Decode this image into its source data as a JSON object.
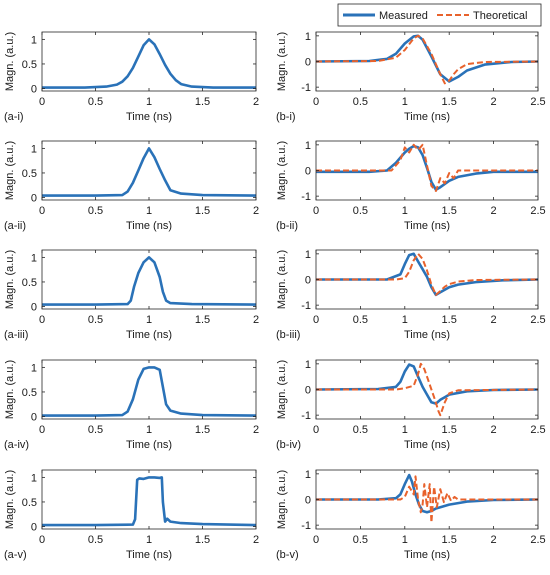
{
  "legend": {
    "measured_label": "Measured",
    "theoretical_label": "Theoretical"
  },
  "colors": {
    "measured": "#2a72b8",
    "theoretical": "#e8622c",
    "axis": "#262626"
  },
  "chart_data": [
    {
      "id": "a-i",
      "type": "line",
      "panel_label": "(a-i)",
      "xlabel": "Time (ns)",
      "ylabel": "Magn. (a.u.)",
      "xlim": [
        0,
        2
      ],
      "ylim": [
        -0.05,
        1.15
      ],
      "xticks": [
        0,
        0.5,
        1,
        1.5,
        2
      ],
      "xtick_labels": [
        "0",
        "0.5",
        "1",
        "1.5",
        "2"
      ],
      "yticks": [
        0,
        0.5,
        1
      ],
      "ytick_labels": [
        "0",
        "0.5",
        "1"
      ],
      "series": [
        {
          "role": "measured",
          "x": [
            0,
            0.4,
            0.6,
            0.7,
            0.75,
            0.8,
            0.85,
            0.9,
            0.95,
            1.0,
            1.05,
            1.1,
            1.15,
            1.2,
            1.25,
            1.3,
            1.4,
            1.6,
            2.0
          ],
          "y": [
            0.02,
            0.02,
            0.04,
            0.08,
            0.14,
            0.25,
            0.42,
            0.65,
            0.88,
            1.0,
            0.9,
            0.7,
            0.48,
            0.3,
            0.17,
            0.09,
            0.04,
            0.02,
            0.02
          ]
        }
      ]
    },
    {
      "id": "b-i",
      "type": "line",
      "panel_label": "(b-i)",
      "xlabel": "Time (ns)",
      "ylabel": "Magn. (a.u.)",
      "xlim": [
        0,
        2.5
      ],
      "ylim": [
        -1.15,
        1.15
      ],
      "xticks": [
        0,
        0.5,
        1,
        1.5,
        2,
        2.5
      ],
      "xtick_labels": [
        "0",
        "0.5",
        "1",
        "1.5",
        "2",
        "2.5"
      ],
      "yticks": [
        -1,
        0,
        1
      ],
      "ytick_labels": [
        "-1",
        "0",
        "1"
      ],
      "series": [
        {
          "role": "measured",
          "x": [
            0,
            0.6,
            0.8,
            0.9,
            1.0,
            1.1,
            1.15,
            1.2,
            1.3,
            1.4,
            1.5,
            1.6,
            1.7,
            1.9,
            2.2,
            2.5
          ],
          "y": [
            0.0,
            0.02,
            0.1,
            0.3,
            0.7,
            0.98,
            1.0,
            0.85,
            0.2,
            -0.5,
            -0.78,
            -0.6,
            -0.35,
            -0.12,
            -0.02,
            0.0
          ]
        },
        {
          "role": "theoretical",
          "x": [
            0,
            0.7,
            0.9,
            1.0,
            1.1,
            1.15,
            1.2,
            1.3,
            1.4,
            1.45,
            1.5,
            1.55,
            1.6,
            1.7,
            1.9,
            2.5
          ],
          "y": [
            0.0,
            0.02,
            0.15,
            0.45,
            0.9,
            1.0,
            0.9,
            0.3,
            -0.5,
            -0.85,
            -0.75,
            -0.5,
            -0.3,
            -0.1,
            -0.02,
            0.0
          ]
        }
      ]
    },
    {
      "id": "a-ii",
      "type": "line",
      "panel_label": "(a-ii)",
      "xlabel": "Time (ns)",
      "ylabel": "Magn. (a.u.)",
      "xlim": [
        0,
        2
      ],
      "ylim": [
        -0.05,
        1.15
      ],
      "xticks": [
        0,
        0.5,
        1,
        1.5,
        2
      ],
      "xtick_labels": [
        "0",
        "0.5",
        "1",
        "1.5",
        "2"
      ],
      "yticks": [
        0,
        0.5,
        1
      ],
      "ytick_labels": [
        "0",
        "0.5",
        "1"
      ],
      "series": [
        {
          "role": "measured",
          "x": [
            0,
            0.5,
            0.75,
            0.8,
            0.85,
            0.9,
            0.95,
            1.0,
            1.05,
            1.1,
            1.15,
            1.2,
            1.3,
            1.5,
            2.0
          ],
          "y": [
            0.04,
            0.04,
            0.05,
            0.12,
            0.3,
            0.55,
            0.8,
            1.0,
            0.82,
            0.58,
            0.35,
            0.15,
            0.08,
            0.05,
            0.04
          ]
        }
      ]
    },
    {
      "id": "b-ii",
      "type": "line",
      "panel_label": "(b-ii)",
      "xlabel": "Time (ns)",
      "ylabel": "Magn. (a.u.)",
      "xlim": [
        0,
        2.5
      ],
      "ylim": [
        -1.15,
        1.15
      ],
      "xticks": [
        0,
        0.5,
        1,
        1.5,
        2,
        2.5
      ],
      "xtick_labels": [
        "0",
        "0.5",
        "1",
        "1.5",
        "2",
        "2.5"
      ],
      "yticks": [
        -1,
        0,
        1
      ],
      "ytick_labels": [
        "-1",
        "0",
        "1"
      ],
      "series": [
        {
          "role": "measured",
          "x": [
            0,
            0.6,
            0.8,
            0.9,
            1.0,
            1.05,
            1.1,
            1.15,
            1.2,
            1.25,
            1.3,
            1.35,
            1.4,
            1.5,
            1.6,
            1.8,
            2.0,
            2.5
          ],
          "y": [
            -0.05,
            -0.05,
            0.0,
            0.3,
            0.7,
            0.85,
            0.95,
            0.9,
            0.6,
            0.1,
            -0.45,
            -0.75,
            -0.65,
            -0.4,
            -0.25,
            -0.12,
            -0.05,
            -0.05
          ]
        },
        {
          "role": "theoretical",
          "x": [
            0,
            0.85,
            0.95,
            1.0,
            1.05,
            1.1,
            1.15,
            1.2,
            1.25,
            1.3,
            1.35,
            1.4,
            1.45,
            1.5,
            1.55,
            1.6,
            1.7,
            2.0,
            2.5
          ],
          "y": [
            0.0,
            0.0,
            0.4,
            0.9,
            0.7,
            1.0,
            0.8,
            1.0,
            0.2,
            -0.6,
            -0.8,
            -0.3,
            -0.5,
            -0.1,
            -0.3,
            0.0,
            0.0,
            0.0,
            0.0
          ]
        }
      ]
    },
    {
      "id": "a-iii",
      "type": "line",
      "panel_label": "(a-iii)",
      "xlabel": "Time (ns)",
      "ylabel": "Magn. (a.u.)",
      "xlim": [
        0,
        2
      ],
      "ylim": [
        -0.05,
        1.15
      ],
      "xticks": [
        0,
        0.5,
        1,
        1.5,
        2
      ],
      "xtick_labels": [
        "0",
        "0.5",
        "1",
        "1.5",
        "2"
      ],
      "yticks": [
        0,
        0.5,
        1
      ],
      "ytick_labels": [
        "0",
        "0.5",
        "1"
      ],
      "series": [
        {
          "role": "measured",
          "x": [
            0,
            0.5,
            0.8,
            0.83,
            0.86,
            0.9,
            0.95,
            1.0,
            1.05,
            1.1,
            1.13,
            1.16,
            1.2,
            1.4,
            2.0
          ],
          "y": [
            0.04,
            0.04,
            0.05,
            0.12,
            0.4,
            0.68,
            0.9,
            1.0,
            0.9,
            0.6,
            0.3,
            0.12,
            0.07,
            0.05,
            0.04
          ]
        }
      ]
    },
    {
      "id": "b-iii",
      "type": "line",
      "panel_label": "(b-iii)",
      "xlabel": "Time (ns)",
      "ylabel": "Magn. (a.u.)",
      "xlim": [
        0,
        2.5
      ],
      "ylim": [
        -1.15,
        1.15
      ],
      "xticks": [
        0,
        0.5,
        1,
        1.5,
        2,
        2.5
      ],
      "xtick_labels": [
        "0",
        "0.5",
        "1",
        "1.5",
        "2",
        "2.5"
      ],
      "yticks": [
        -1,
        0,
        1
      ],
      "ytick_labels": [
        "-1",
        "0",
        "1"
      ],
      "series": [
        {
          "role": "measured",
          "x": [
            0,
            0.8,
            0.95,
            1.0,
            1.05,
            1.1,
            1.15,
            1.2,
            1.25,
            1.3,
            1.35,
            1.4,
            1.5,
            1.6,
            1.8,
            2.1,
            2.5
          ],
          "y": [
            0.0,
            0.0,
            0.2,
            0.6,
            0.95,
            1.0,
            0.7,
            0.4,
            0.1,
            -0.3,
            -0.6,
            -0.5,
            -0.3,
            -0.2,
            -0.1,
            -0.03,
            0.0
          ]
        },
        {
          "role": "theoretical",
          "x": [
            0,
            0.9,
            1.0,
            1.05,
            1.1,
            1.15,
            1.2,
            1.25,
            1.3,
            1.35,
            1.4,
            1.45,
            1.5,
            1.6,
            1.8,
            2.5
          ],
          "y": [
            0.0,
            0.0,
            0.05,
            0.3,
            0.75,
            1.0,
            0.8,
            0.35,
            -0.2,
            -0.6,
            -0.45,
            -0.28,
            -0.18,
            -0.08,
            -0.02,
            0.0
          ]
        }
      ]
    },
    {
      "id": "a-iv",
      "type": "line",
      "panel_label": "(a-iv)",
      "xlabel": "Time (ns)",
      "ylabel": "Magn. (a.u.)",
      "xlim": [
        0,
        2
      ],
      "ylim": [
        -0.05,
        1.15
      ],
      "xticks": [
        0,
        0.5,
        1,
        1.5,
        2
      ],
      "xtick_labels": [
        "0",
        "0.5",
        "1",
        "1.5",
        "2"
      ],
      "yticks": [
        0,
        0.5,
        1
      ],
      "ytick_labels": [
        "0",
        "0.5",
        "1"
      ],
      "series": [
        {
          "role": "measured",
          "x": [
            0,
            0.5,
            0.75,
            0.8,
            0.85,
            0.9,
            0.95,
            1.0,
            1.05,
            1.1,
            1.13,
            1.16,
            1.2,
            1.3,
            1.5,
            2.0
          ],
          "y": [
            0.02,
            0.02,
            0.03,
            0.1,
            0.35,
            0.75,
            0.97,
            1.0,
            1.0,
            0.95,
            0.6,
            0.25,
            0.12,
            0.06,
            0.03,
            0.02
          ]
        }
      ]
    },
    {
      "id": "b-iv",
      "type": "line",
      "panel_label": "(b-iv)",
      "xlabel": "Time (ns)",
      "ylabel": "Magn. (a.u.)",
      "xlim": [
        0,
        2.5
      ],
      "ylim": [
        -1.15,
        1.15
      ],
      "xticks": [
        0,
        0.5,
        1,
        1.5,
        2,
        2.5
      ],
      "xtick_labels": [
        "0",
        "0.5",
        "1",
        "1.5",
        "2",
        "2.5"
      ],
      "yticks": [
        -1,
        0,
        1
      ],
      "ytick_labels": [
        "-1",
        "0",
        "1"
      ],
      "series": [
        {
          "role": "measured",
          "x": [
            0,
            0.7,
            0.9,
            0.95,
            1.0,
            1.05,
            1.1,
            1.15,
            1.2,
            1.25,
            1.3,
            1.35,
            1.4,
            1.45,
            1.5,
            1.7,
            2.0,
            2.5
          ],
          "y": [
            0.0,
            0.02,
            0.1,
            0.3,
            0.7,
            0.97,
            0.9,
            0.5,
            0.1,
            -0.2,
            -0.5,
            -0.55,
            -0.4,
            -0.3,
            -0.2,
            -0.07,
            -0.02,
            0.0
          ]
        },
        {
          "role": "theoretical",
          "x": [
            0,
            0.9,
            1.0,
            1.1,
            1.15,
            1.18,
            1.22,
            1.26,
            1.3,
            1.34,
            1.38,
            1.4,
            1.45,
            1.5,
            1.6,
            2.5
          ],
          "y": [
            0.0,
            0.0,
            0.05,
            0.15,
            0.6,
            1.0,
            0.8,
            0.4,
            0.0,
            -0.4,
            -0.85,
            -1.0,
            -0.5,
            -0.15,
            -0.03,
            0.0
          ]
        }
      ]
    },
    {
      "id": "a-v",
      "type": "line",
      "panel_label": "(a-v)",
      "xlabel": "Time (ns)",
      "ylabel": "Magn. (a.u.)",
      "xlim": [
        0,
        2
      ],
      "ylim": [
        -0.05,
        1.15
      ],
      "xticks": [
        0,
        0.5,
        1,
        1.5,
        2
      ],
      "xtick_labels": [
        "0",
        "0.5",
        "1",
        "1.5",
        "2"
      ],
      "yticks": [
        0,
        0.5,
        1
      ],
      "ytick_labels": [
        "0",
        "0.5",
        "1"
      ],
      "series": [
        {
          "role": "measured",
          "x": [
            0,
            0.5,
            0.85,
            0.87,
            0.89,
            0.91,
            0.95,
            1.0,
            1.05,
            1.1,
            1.12,
            1.13,
            1.15,
            1.17,
            1.2,
            1.3,
            1.5,
            2.0
          ],
          "y": [
            0.03,
            0.03,
            0.04,
            0.15,
            0.95,
            0.98,
            0.97,
            1.0,
            1.0,
            0.99,
            1.0,
            0.5,
            0.1,
            0.16,
            0.1,
            0.07,
            0.05,
            0.03
          ]
        }
      ]
    },
    {
      "id": "b-v",
      "type": "line",
      "panel_label": "(b-v)",
      "xlabel": "Time (ns)",
      "ylabel": "Magn. (a.u.)",
      "xlim": [
        0,
        2.5
      ],
      "ylim": [
        -1.15,
        1.15
      ],
      "xticks": [
        0,
        0.5,
        1,
        1.5,
        2,
        2.5
      ],
      "xtick_labels": [
        "0",
        "0.5",
        "1",
        "1.5",
        "2",
        "2.5"
      ],
      "yticks": [
        -1,
        0,
        1
      ],
      "ytick_labels": [
        "-1",
        "0",
        "1"
      ],
      "series": [
        {
          "role": "measured",
          "x": [
            0,
            0.7,
            0.9,
            0.95,
            1.0,
            1.05,
            1.08,
            1.12,
            1.16,
            1.2,
            1.25,
            1.3,
            1.35,
            1.4,
            1.5,
            1.7,
            2.0,
            2.5
          ],
          "y": [
            0.0,
            0.0,
            0.05,
            0.2,
            0.6,
            0.95,
            0.7,
            0.2,
            -0.2,
            -0.45,
            -0.5,
            -0.45,
            -0.35,
            -0.3,
            -0.2,
            -0.08,
            -0.02,
            0.0
          ]
        },
        {
          "role": "theoretical",
          "x": [
            0,
            0.95,
            1.0,
            1.05,
            1.1,
            1.12,
            1.15,
            1.18,
            1.2,
            1.22,
            1.25,
            1.28,
            1.3,
            1.33,
            1.36,
            1.4,
            1.44,
            1.48,
            1.52,
            1.56,
            1.6,
            1.7,
            2.5
          ],
          "y": [
            0.0,
            0.0,
            0.1,
            0.5,
            0.2,
            0.9,
            0.0,
            -0.5,
            -0.2,
            0.6,
            -0.3,
            0.6,
            -0.9,
            0.5,
            -0.3,
            0.4,
            -0.1,
            0.25,
            -0.05,
            0.1,
            0.0,
            0.0,
            0.0
          ]
        }
      ]
    }
  ]
}
